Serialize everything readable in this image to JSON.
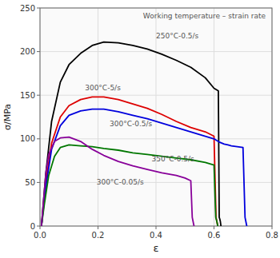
{
  "chart_data": {
    "type": "line",
    "title": "Working temperature – strain rate",
    "xlabel": "ε",
    "ylabel": "σ/MPa",
    "xlim": [
      0,
      0.8
    ],
    "ylim": [
      0,
      250
    ],
    "xticks": [
      {
        "value": 0,
        "label": "0.0"
      },
      0.2,
      0.4,
      0.6,
      0.8
    ],
    "yticks": [
      0,
      50,
      100,
      150,
      200,
      250
    ],
    "grid": true,
    "series": [
      {
        "color": "#000000",
        "x": [
          0.005,
          0.02,
          0.04,
          0.07,
          0.1,
          0.14,
          0.18,
          0.22,
          0.27,
          0.32,
          0.37,
          0.42,
          0.47,
          0.52,
          0.57,
          0.6,
          0.615,
          0.618,
          0.62,
          0.622,
          0.624
        ],
        "values": [
          0,
          60,
          120,
          165,
          185,
          198,
          207,
          211,
          210,
          207,
          203,
          197,
          190,
          182,
          170,
          158,
          155,
          10,
          8,
          5,
          0
        ]
      },
      {
        "color": "#dd0000",
        "x": [
          0.005,
          0.02,
          0.04,
          0.07,
          0.1,
          0.14,
          0.18,
          0.22,
          0.27,
          0.32,
          0.37,
          0.42,
          0.47,
          0.52,
          0.57,
          0.6,
          0.607,
          0.61,
          0.613
        ],
        "values": [
          0,
          50,
          95,
          125,
          138,
          145,
          148,
          148,
          145,
          140,
          135,
          128,
          120,
          113,
          108,
          103,
          10,
          5,
          0
        ]
      },
      {
        "color": "#0000dd",
        "x": [
          0.005,
          0.02,
          0.04,
          0.07,
          0.1,
          0.14,
          0.18,
          0.22,
          0.27,
          0.32,
          0.37,
          0.42,
          0.47,
          0.52,
          0.57,
          0.6,
          0.62,
          0.635,
          0.648,
          0.66,
          0.68,
          0.7,
          0.707,
          0.71,
          0.713
        ],
        "values": [
          0,
          45,
          88,
          115,
          127,
          132,
          134,
          134,
          131,
          127,
          123,
          118,
          113,
          108,
          103,
          100,
          96,
          94,
          93,
          92,
          91,
          90,
          10,
          5,
          0
        ]
      },
      {
        "color": "#007700",
        "x": [
          0.005,
          0.015,
          0.03,
          0.05,
          0.07,
          0.1,
          0.14,
          0.18,
          0.22,
          0.27,
          0.32,
          0.37,
          0.42,
          0.47,
          0.52,
          0.57,
          0.6,
          0.606,
          0.61,
          0.613
        ],
        "values": [
          0,
          25,
          58,
          80,
          90,
          93,
          92,
          91,
          89,
          87,
          84,
          82,
          80,
          78,
          76,
          73,
          70,
          10,
          5,
          0
        ]
      },
      {
        "color": "#880099",
        "x": [
          0.005,
          0.01,
          0.02,
          0.03,
          0.05,
          0.07,
          0.1,
          0.14,
          0.18,
          0.22,
          0.27,
          0.32,
          0.37,
          0.42,
          0.47,
          0.5,
          0.52,
          0.525,
          0.528,
          0.531
        ],
        "values": [
          0,
          20,
          60,
          82,
          97,
          101,
          102,
          97,
          88,
          81,
          74,
          69,
          65,
          61,
          58,
          55,
          52,
          10,
          5,
          0
        ]
      }
    ],
    "annotations": [
      {
        "text": "250°C-0.5/s",
        "x": 0.4,
        "y": 218,
        "color": "#555555"
      },
      {
        "text": "300°C-5/s",
        "x": 0.155,
        "y": 158,
        "color": "#555555"
      },
      {
        "text": "300°C-0.5/s",
        "x": 0.24,
        "y": 117,
        "color": "#555555"
      },
      {
        "text": "350°C-0.5/s",
        "x": 0.385,
        "y": 77,
        "color": "#555555"
      },
      {
        "text": "300°C-0.05/s",
        "x": 0.195,
        "y": 50,
        "color": "#555555"
      }
    ]
  }
}
